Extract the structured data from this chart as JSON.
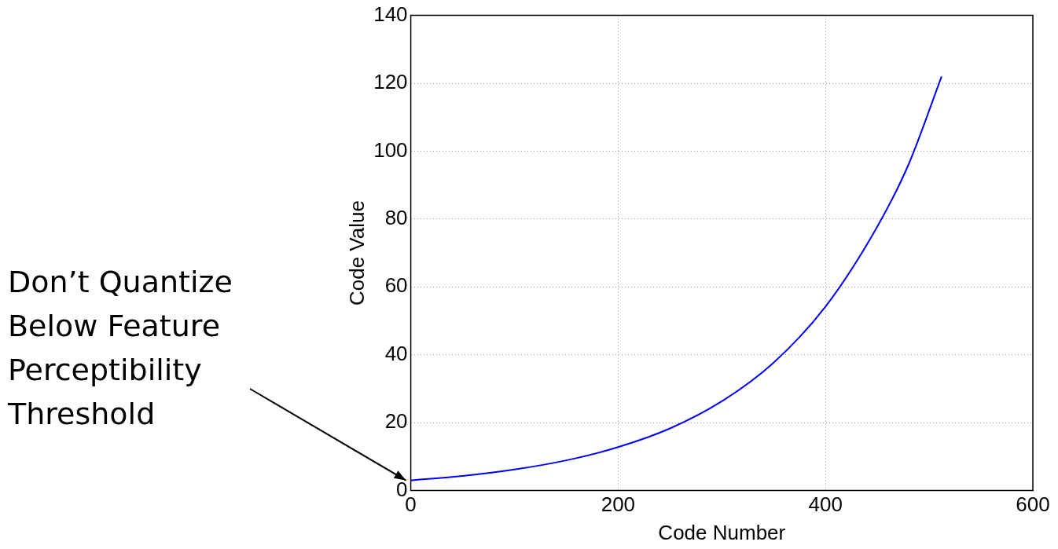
{
  "chart_data": {
    "type": "line",
    "xlabel": "Code Number",
    "ylabel": "Code Value",
    "x": [
      0,
      50,
      100,
      150,
      200,
      250,
      300,
      350,
      400,
      450,
      480,
      512
    ],
    "series": [
      {
        "color": "#0000ff",
        "values": [
          3,
          4.3,
          6.2,
          8.9,
          12.8,
          18.3,
          26.3,
          37.7,
          54.2,
          77.8,
          96,
          122
        ]
      }
    ],
    "xlim": [
      0,
      600
    ],
    "xticks": [
      0,
      200,
      400,
      600
    ],
    "ylim": [
      0,
      140
    ],
    "yticks": [
      0,
      20,
      40,
      60,
      80,
      100,
      120,
      140
    ],
    "grid": true,
    "legend": false,
    "marker": "none",
    "line_style": "solid",
    "annotations": [
      {
        "text": "Don’t Quantize Below Feature Perceptibility Threshold",
        "x": 0,
        "y": 3
      }
    ]
  }
}
